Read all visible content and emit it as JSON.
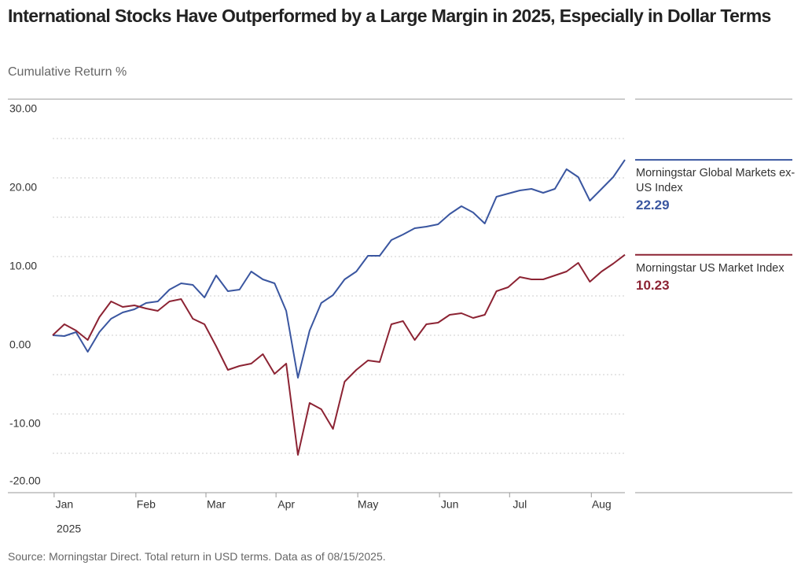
{
  "chart_data": {
    "type": "line",
    "title": "International Stocks Have Outperformed by a Large Margin in 2025, Especially in Dollar Terms",
    "subtitle": "Cumulative Return %",
    "source": "Source: Morningstar Direct. Total return in USD terms. Data as of 08/15/2025.",
    "x_year_label": "2025",
    "categories": [
      null,
      "Jan",
      null,
      null,
      null,
      null,
      null,
      null,
      "Feb",
      null,
      null,
      null,
      null,
      null,
      "Mar",
      null,
      null,
      null,
      null,
      null,
      "Apr",
      null,
      null,
      null,
      null,
      null,
      null,
      "May",
      null,
      null,
      null,
      null,
      null,
      null,
      "Jun",
      null,
      null,
      null,
      null,
      null,
      "Jul",
      null,
      null,
      null,
      null,
      null,
      null,
      "Aug",
      null,
      null
    ],
    "series": [
      {
        "name": "Morningstar Global Markets ex-US Index",
        "color": "#3a56a0",
        "values": [
          0,
          -0.1,
          0.4,
          -2.1,
          0.4,
          2.1,
          2.9,
          3.3,
          4.1,
          4.3,
          5.8,
          6.6,
          6.4,
          4.8,
          7.6,
          5.6,
          5.8,
          8.1,
          7.1,
          6.6,
          3.1,
          -5.4,
          0.6,
          4.1,
          5.1,
          7.1,
          8.1,
          10.1,
          10.1,
          12.1,
          12.8,
          13.6,
          13.8,
          14.1,
          15.4,
          16.4,
          15.6,
          14.2,
          17.6,
          18.0,
          18.4,
          18.6,
          18.1,
          18.6,
          21.1,
          20.1,
          17.1,
          18.6,
          20.1,
          22.29
        ]
      },
      {
        "name": "Morningstar US Market Index",
        "color": "#8c2333",
        "values": [
          0,
          1.4,
          0.6,
          -0.6,
          2.3,
          4.3,
          3.6,
          3.8,
          3.4,
          3.1,
          4.3,
          4.6,
          2.1,
          1.4,
          -1.4,
          -4.4,
          -3.9,
          -3.6,
          -2.4,
          -4.9,
          -3.6,
          -15.2,
          -8.6,
          -9.4,
          -11.9,
          -5.9,
          -4.4,
          -3.2,
          -3.4,
          1.4,
          1.8,
          -0.6,
          1.4,
          1.6,
          2.6,
          2.8,
          2.2,
          2.6,
          5.6,
          6.1,
          7.4,
          7.1,
          7.1,
          7.6,
          8.1,
          9.2,
          6.8,
          8.1,
          9.1,
          10.23
        ]
      }
    ],
    "ylim": [
      -20,
      30
    ],
    "yticks": [
      {
        "value": -20,
        "label": "-20.00"
      },
      {
        "value": -10,
        "label": "-10.00"
      },
      {
        "value": 0,
        "label": "0.00"
      },
      {
        "value": 10,
        "label": "10.00"
      },
      {
        "value": 20,
        "label": "20.00"
      },
      {
        "value": 30,
        "label": "30.00"
      }
    ],
    "minor_grid_step": 5,
    "legend": "right"
  }
}
